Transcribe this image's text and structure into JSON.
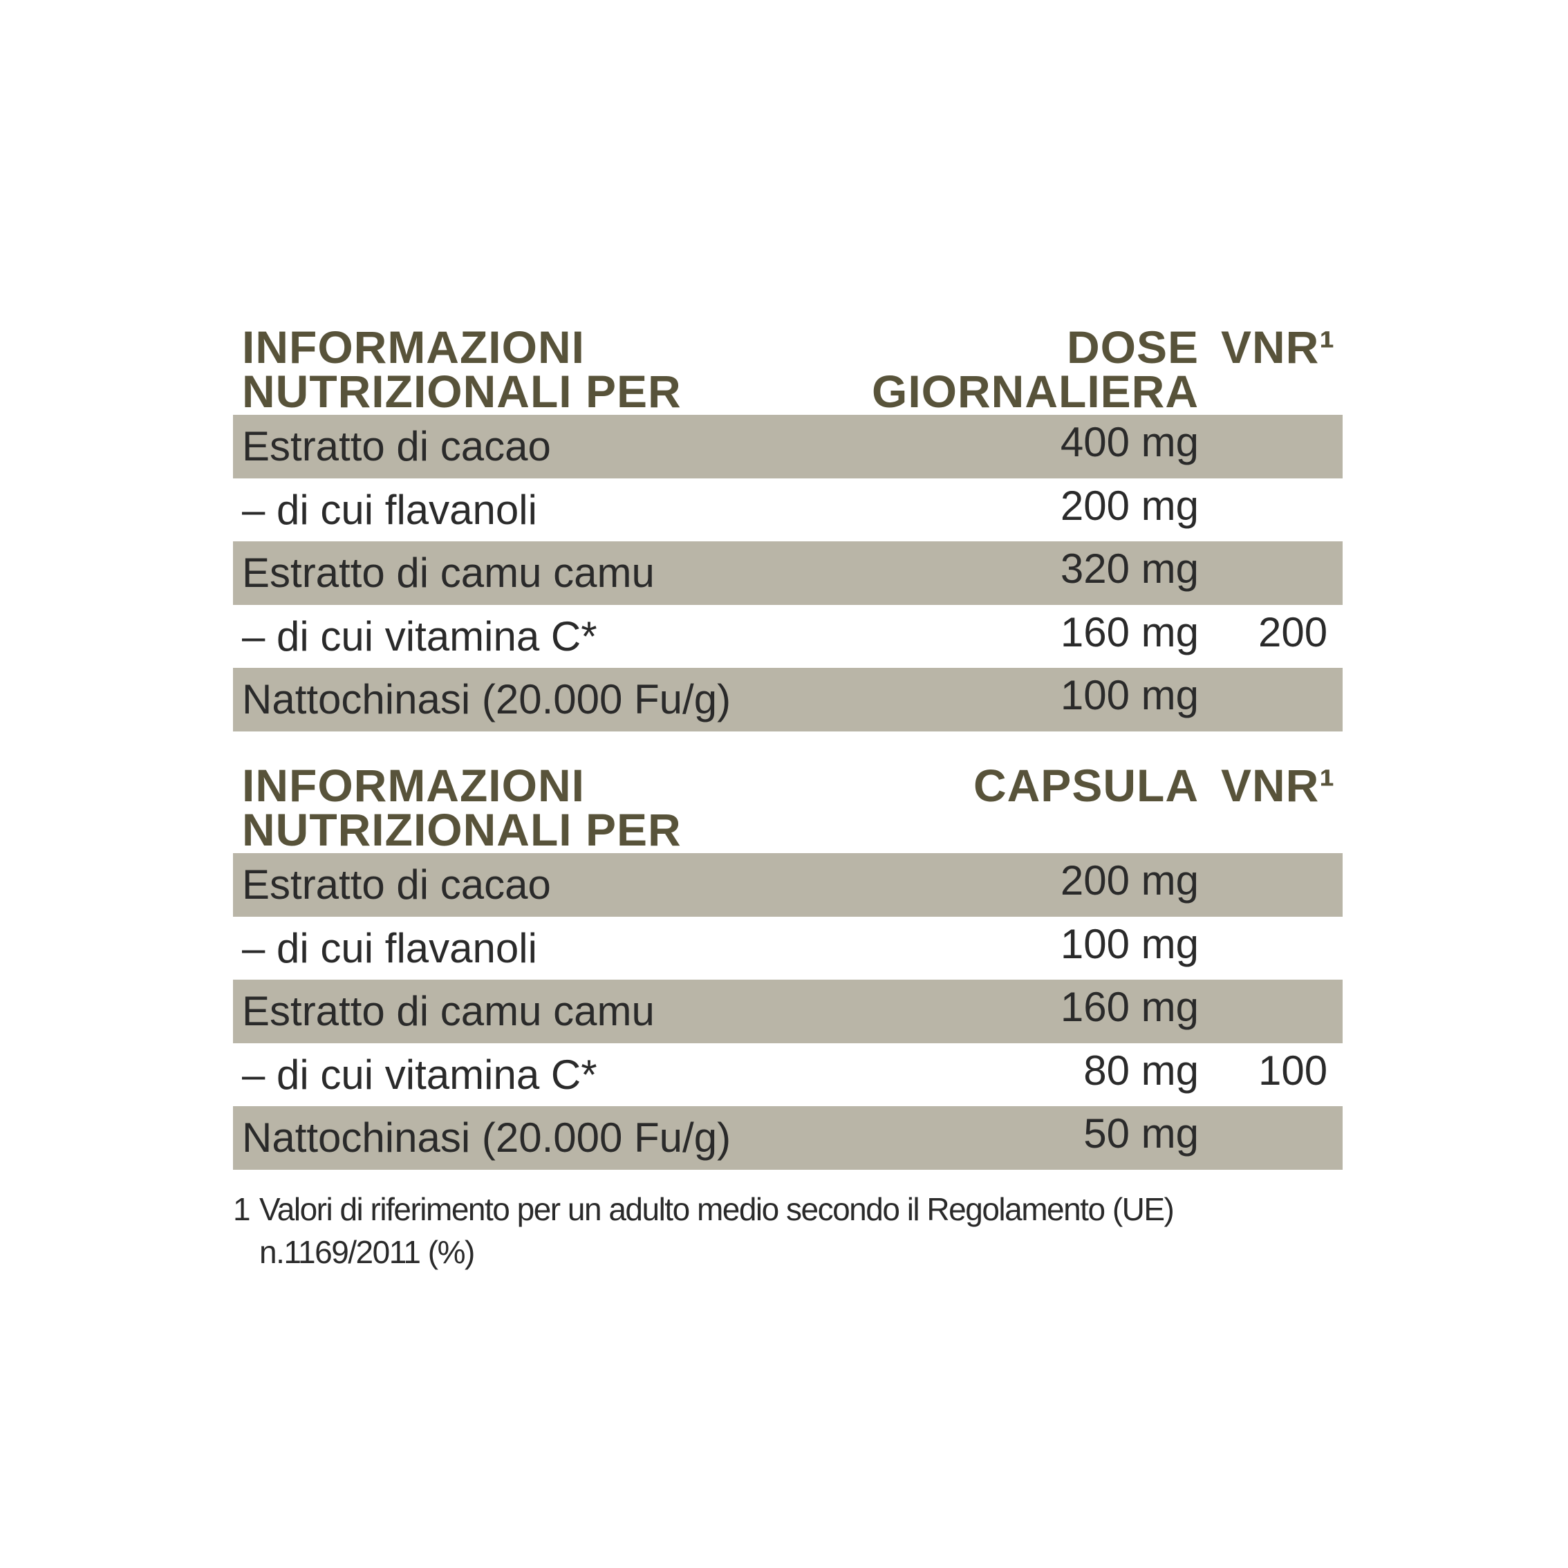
{
  "tables": [
    {
      "header": {
        "title_line1": "INFORMAZIONI",
        "title_line2": "NUTRIZIONALI PER",
        "dose_line1": "DOSE",
        "dose_line2": "GIORNALIERA",
        "vnr": "VNR¹"
      },
      "rows": [
        {
          "name": "Estratto di cacao",
          "qty": "400 mg",
          "vnr": ""
        },
        {
          "name": "– di cui flavanoli",
          "qty": "200 mg",
          "vnr": ""
        },
        {
          "name": "Estratto di camu camu",
          "qty": "320 mg",
          "vnr": ""
        },
        {
          "name": "– di cui vitamina C*",
          "qty": "160 mg",
          "vnr": "200"
        },
        {
          "name": "Nattochinasi (20.000 Fu/g)",
          "qty": "100 mg",
          "vnr": ""
        }
      ]
    },
    {
      "header": {
        "title_line1": "INFORMAZIONI",
        "title_line2": "NUTRIZIONALI PER",
        "dose_line1": "CAPSULA",
        "dose_line2": "",
        "vnr": "VNR¹"
      },
      "rows": [
        {
          "name": "Estratto di cacao",
          "qty": "200 mg",
          "vnr": ""
        },
        {
          "name": "– di cui flavanoli",
          "qty": "100 mg",
          "vnr": ""
        },
        {
          "name": "Estratto di camu camu",
          "qty": "160 mg",
          "vnr": ""
        },
        {
          "name": "– di cui vitamina C*",
          "qty": "80 mg",
          "vnr": "100"
        },
        {
          "name": "Nattochinasi (20.000 Fu/g)",
          "qty": "50 mg",
          "vnr": ""
        }
      ]
    }
  ],
  "footnote": {
    "marker": "1",
    "text": "Valori di riferimento per un adulto medio secondo il Regolamento (UE) n.1169/2011  (%)"
  },
  "colors": {
    "header": "#58533a",
    "row_shade": "#b9b5a7",
    "text": "#2a2a2a"
  }
}
